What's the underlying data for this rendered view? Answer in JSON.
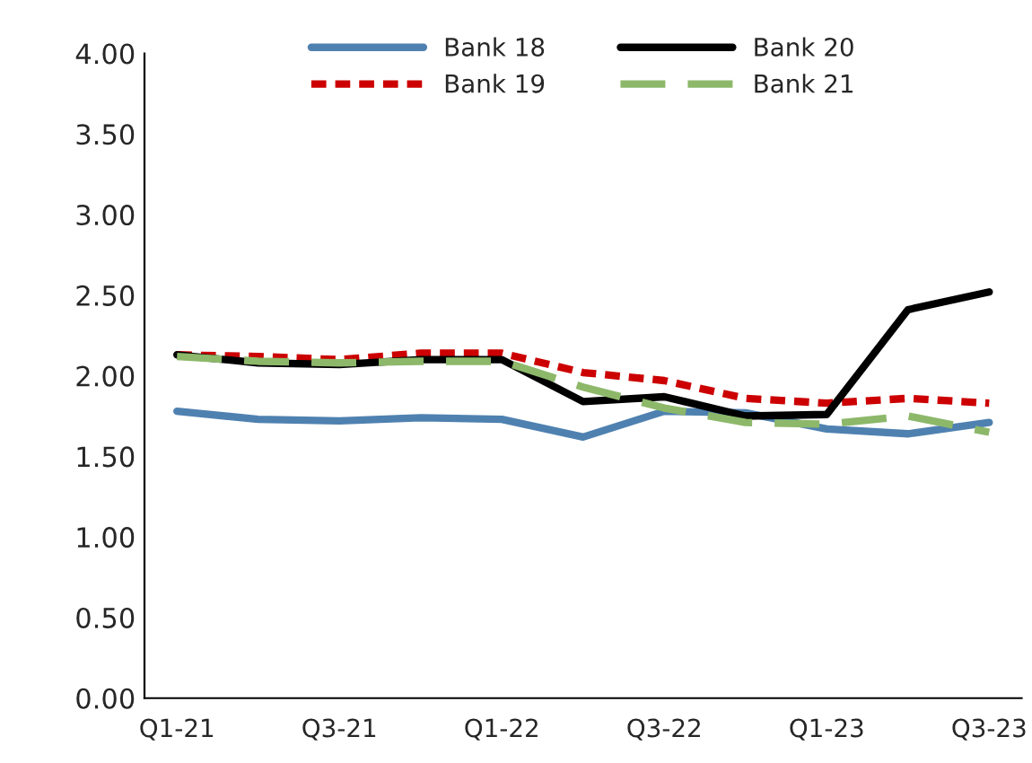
{
  "chart_data": {
    "type": "line",
    "categories": [
      "Q1-21",
      null,
      "Q3-21",
      null,
      "Q1-22",
      null,
      "Q3-22",
      null,
      "Q1-23",
      null,
      "Q3-23"
    ],
    "series": [
      {
        "name": "Bank 18",
        "color": "#4f81b0",
        "line_style": "solid",
        "values": [
          1.78,
          1.73,
          1.72,
          1.74,
          1.73,
          1.62,
          1.78,
          1.77,
          1.67,
          1.64,
          1.71
        ]
      },
      {
        "name": "Bank 19",
        "color": "#cc0000",
        "line_style": "dotted",
        "values": [
          2.13,
          2.12,
          2.1,
          2.14,
          2.14,
          2.02,
          1.97,
          1.86,
          1.83,
          1.86,
          1.83
        ]
      },
      {
        "name": "Bank 20",
        "color": "#000000",
        "line_style": "solid",
        "values": [
          2.13,
          2.08,
          2.07,
          2.1,
          2.1,
          1.84,
          1.87,
          1.75,
          1.76,
          2.41,
          2.52
        ]
      },
      {
        "name": "Bank 21",
        "color": "#8db86a",
        "line_style": "dashed",
        "values": [
          2.12,
          2.09,
          2.08,
          2.09,
          2.09,
          1.93,
          1.8,
          1.71,
          1.7,
          1.75,
          1.65
        ]
      }
    ],
    "ylim": [
      0,
      4
    ],
    "yticks": [
      {
        "value": 0,
        "label": "0.00"
      },
      {
        "value": 0.5,
        "label": "0.50"
      },
      {
        "value": 1,
        "label": "1.00"
      },
      {
        "value": 1.5,
        "label": "1.50"
      },
      {
        "value": 2,
        "label": "2.00"
      },
      {
        "value": 2.5,
        "label": "2.50"
      },
      {
        "value": 3,
        "label": "3.00"
      },
      {
        "value": 3.5,
        "label": "3.50"
      },
      {
        "value": 4,
        "label": "4.00"
      }
    ],
    "legend": "top",
    "grid": false,
    "marker": "none"
  }
}
